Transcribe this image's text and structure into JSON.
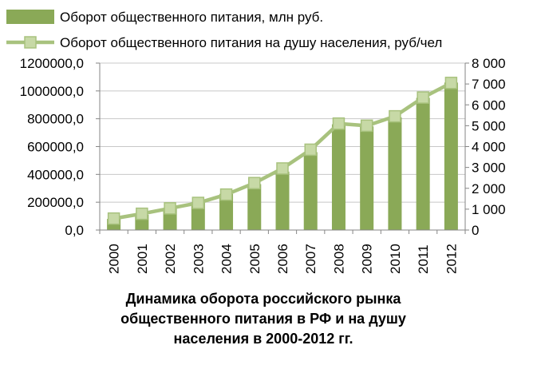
{
  "chart_data": {
    "type": "bar",
    "categories": [
      "2000",
      "2001",
      "2002",
      "2003",
      "2004",
      "2005",
      "2006",
      "2007",
      "2008",
      "2009",
      "2010",
      "2011",
      "2012"
    ],
    "series": [
      {
        "name": "Оборот общественного питания, млн руб.",
        "type": "bar",
        "axis": "left",
        "color": "#8aa957",
        "values": [
          80000,
          110000,
          155000,
          200000,
          260000,
          330000,
          420000,
          560000,
          760000,
          745000,
          810000,
          950000,
          1060000
        ]
      },
      {
        "name": "Оборот общественного питания на душу населения, руб/чел",
        "type": "line",
        "axis": "right",
        "color": "#a8c27e",
        "marker_color": "#c7d9a6",
        "values": [
          550,
          780,
          1040,
          1300,
          1700,
          2250,
          2950,
          3850,
          5100,
          5000,
          5450,
          6350,
          7050
        ]
      }
    ],
    "y_left": {
      "ylim": [
        0,
        1200000
      ],
      "ticks": [
        0,
        200000,
        400000,
        600000,
        800000,
        1000000,
        1200000
      ],
      "tick_labels": [
        "0,0",
        "200000,0",
        "400000,0",
        "600000,0",
        "800000,0",
        "1000000,0",
        "1200000,0"
      ]
    },
    "y_right": {
      "ylim": [
        0,
        8000
      ],
      "ticks": [
        0,
        1000,
        2000,
        3000,
        4000,
        5000,
        6000,
        7000,
        8000
      ],
      "tick_labels": [
        "0",
        "1 000",
        "2 000",
        "3 000",
        "4 000",
        "5 000",
        "6 000",
        "7 000",
        "8 000"
      ]
    },
    "grid": true,
    "legend_position": "top",
    "caption_lines": [
      "Динамика оборота российского рынка",
      "общественного питания в РФ и на душу",
      "населения  в 2000-2012 гг."
    ]
  }
}
